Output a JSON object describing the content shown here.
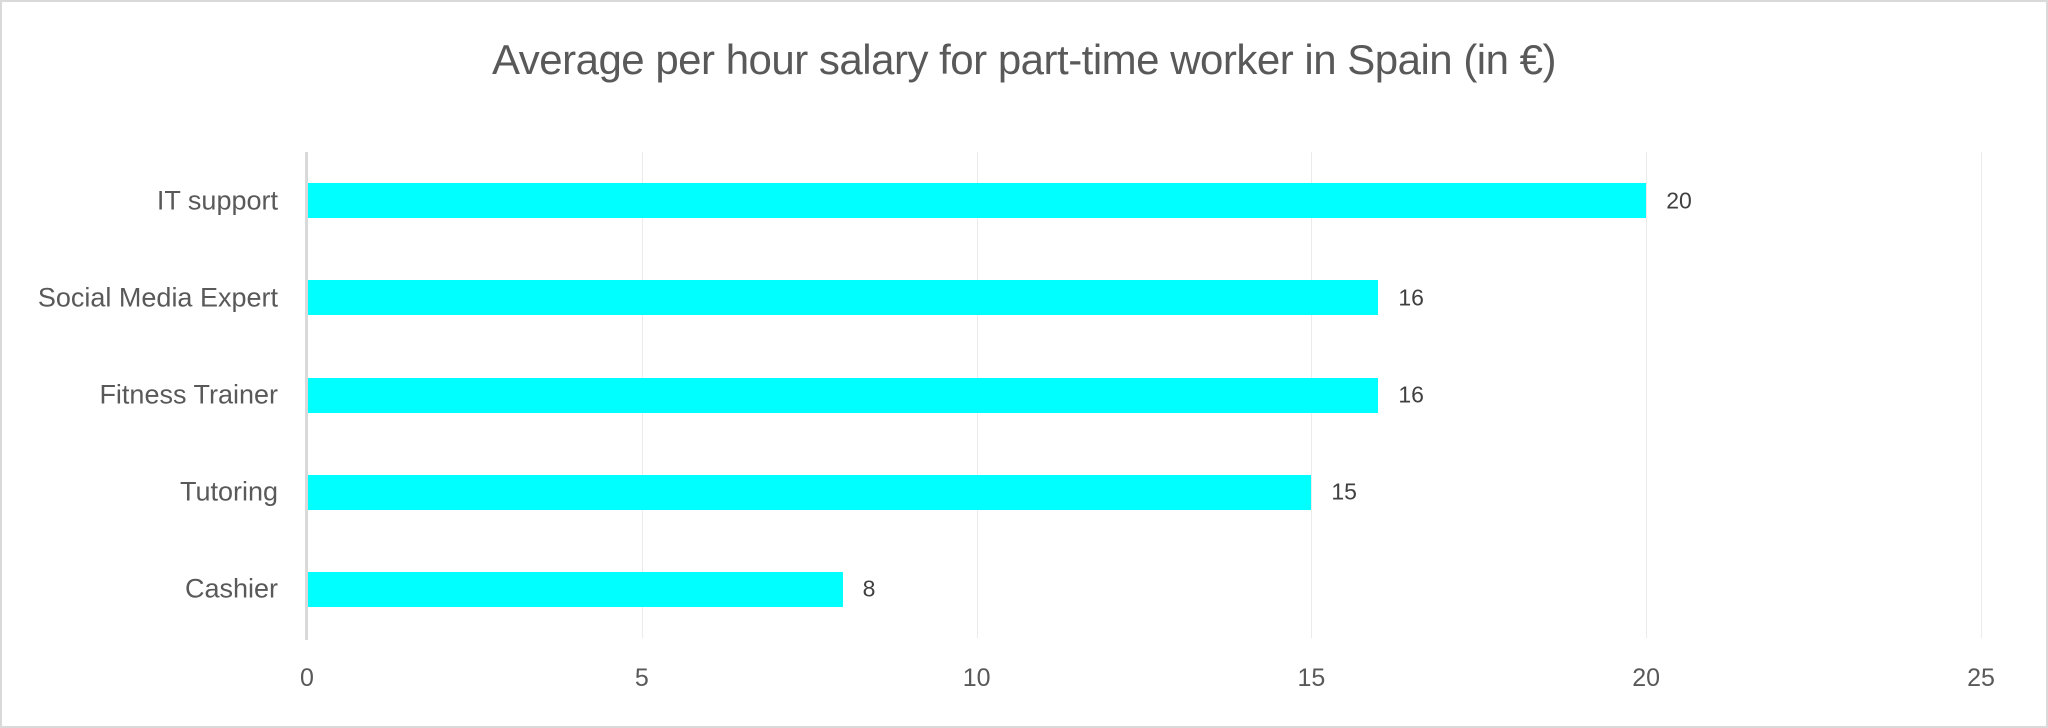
{
  "chart_data": {
    "type": "bar",
    "orientation": "horizontal",
    "title": "Average per hour salary for part-time worker in Spain (in €)",
    "categories": [
      "IT support",
      "Social Media Expert",
      "Fitness Trainer",
      "Tutoring",
      "Cashier"
    ],
    "values": [
      20,
      16,
      16,
      15,
      8
    ],
    "data_labels": [
      "20",
      "16",
      "16",
      "15",
      "8"
    ],
    "xlabel": "",
    "ylabel": "",
    "xlim": [
      0,
      25
    ],
    "x_ticks": [
      "0",
      "5",
      "10",
      "15",
      "20",
      "25"
    ],
    "grid": "vertical",
    "legend": "none",
    "bar_color": "#00FFFF"
  }
}
